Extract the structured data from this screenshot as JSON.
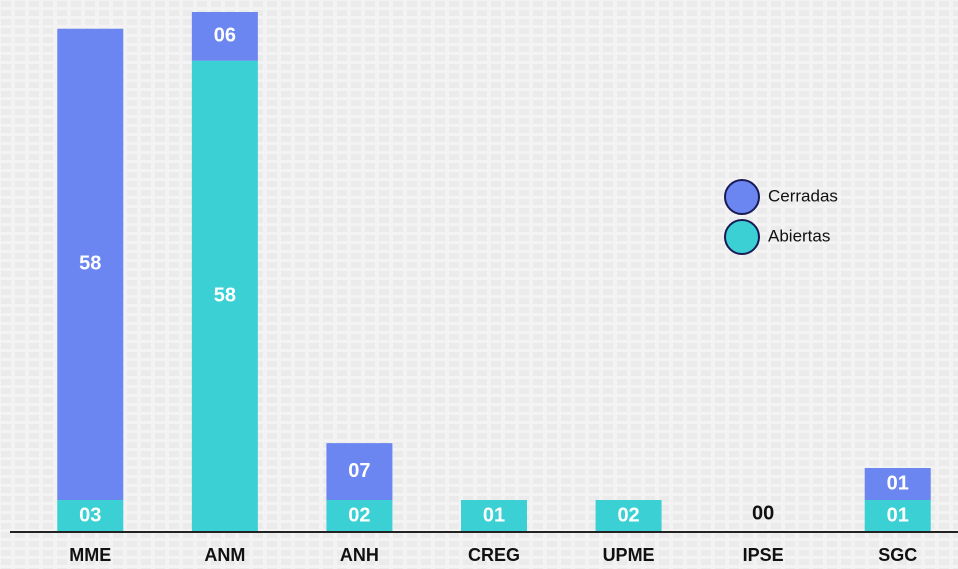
{
  "chart_data": {
    "type": "bar",
    "stacked": true,
    "categories": [
      "MME",
      "ANM",
      "ANH",
      "CREG",
      "UPME",
      "IPSE",
      "SGC"
    ],
    "series": [
      {
        "name": "Abiertas",
        "color": "#3ad0d4",
        "values": [
          3,
          58,
          2,
          1,
          2,
          0,
          1
        ],
        "value_labels": [
          "03",
          "58",
          "02",
          "01",
          "02",
          "00",
          "01"
        ]
      },
      {
        "name": "Cerradas",
        "color": "#6b86f0",
        "values": [
          58,
          6,
          7,
          0,
          0,
          0,
          1
        ],
        "value_labels": [
          "58",
          "06",
          "07",
          null,
          null,
          null,
          "01"
        ]
      }
    ],
    "legend": "right"
  }
}
